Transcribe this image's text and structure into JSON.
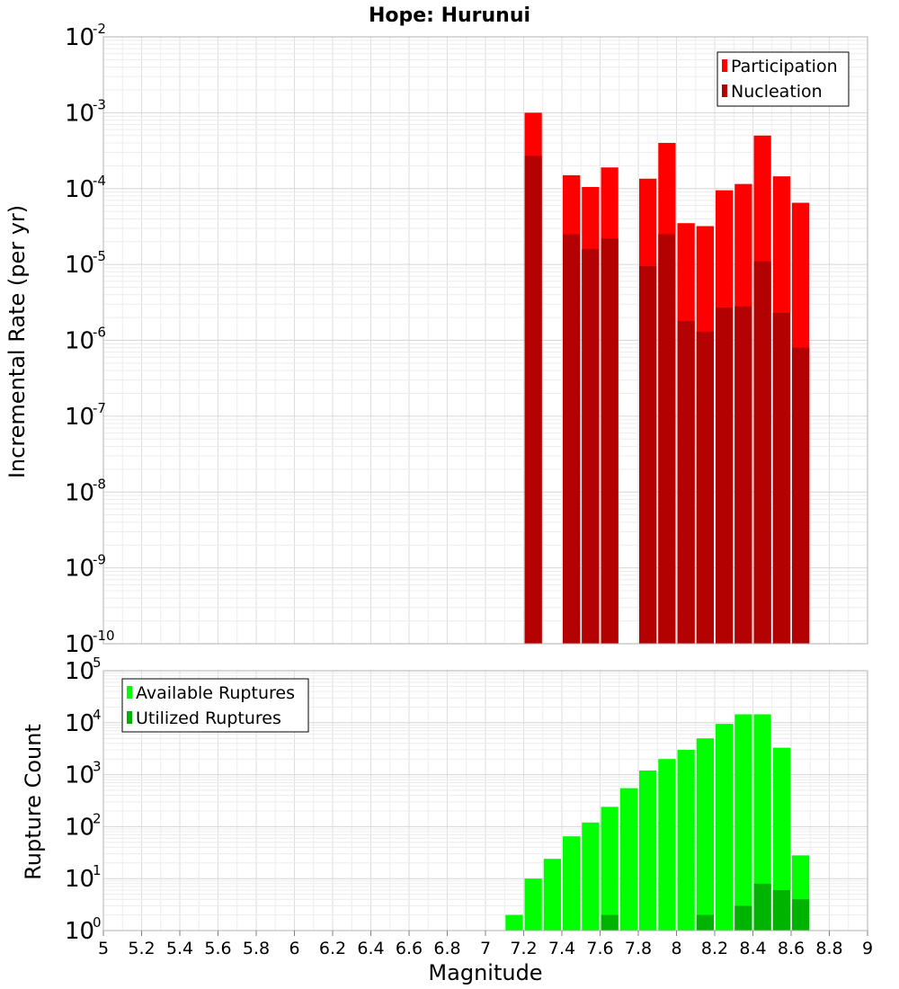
{
  "chart_data": [
    {
      "type": "bar",
      "title": "Hope: Hurunui",
      "xlabel": "Magnitude",
      "ylabel": "Incremental Rate (per yr)",
      "yscale": "log",
      "ylim_exp": [
        -10,
        -2
      ],
      "xlim": [
        5,
        9
      ],
      "legend": "top-right",
      "grid": true,
      "colors": {
        "Participation": "#ff0000",
        "Nucleation": "#b30000"
      },
      "x": [
        7.25,
        7.45,
        7.55,
        7.65,
        7.85,
        7.95,
        8.05,
        8.15,
        8.25,
        8.35,
        8.45,
        8.55,
        8.65
      ],
      "series": [
        {
          "name": "Participation",
          "values": [
            0.001,
            0.00015,
            0.000105,
            0.00019,
            0.000135,
            0.0004,
            3.5e-05,
            3.2e-05,
            9.5e-05,
            0.000115,
            0.0005,
            0.000145,
            6.5e-05
          ]
        },
        {
          "name": "Nucleation",
          "values": [
            0.00027,
            2.5e-05,
            1.6e-05,
            2.2e-05,
            9.5e-06,
            2.5e-05,
            1.8e-06,
            1.3e-06,
            2.7e-06,
            2.8e-06,
            1.1e-05,
            2.3e-06,
            8e-07
          ]
        }
      ]
    },
    {
      "type": "bar",
      "xlabel": "Magnitude",
      "ylabel": "Rupture Count",
      "yscale": "log",
      "ylim_exp": [
        0,
        5
      ],
      "xlim": [
        5,
        9
      ],
      "legend": "top-left",
      "grid": true,
      "colors": {
        "Available Ruptures": "#00ff00",
        "Utilized Ruptures": "#00b300"
      },
      "x": [
        6.75,
        7.15,
        7.25,
        7.35,
        7.45,
        7.55,
        7.65,
        7.75,
        7.85,
        7.95,
        8.05,
        8.15,
        8.25,
        8.35,
        8.45,
        8.55,
        8.65
      ],
      "series": [
        {
          "name": "Available Ruptures",
          "values": [
            1,
            2,
            10,
            24,
            65,
            120,
            240,
            550,
            1200,
            2000,
            3000,
            5000,
            9500,
            14500,
            14500,
            3300,
            28
          ]
        },
        {
          "name": "Utilized Ruptures",
          "values": [
            0,
            0,
            1,
            0,
            1,
            1,
            2,
            0,
            1,
            1,
            1,
            2,
            1,
            3,
            8,
            6,
            4
          ]
        }
      ]
    }
  ],
  "x_ticks": [
    "5",
    "5.2",
    "5.4",
    "5.6",
    "5.8",
    "6",
    "6.2",
    "6.4",
    "6.6",
    "6.8",
    "7",
    "7.2",
    "7.4",
    "7.6",
    "7.8",
    "8",
    "8.2",
    "8.4",
    "8.6",
    "8.8",
    "9"
  ],
  "tick_base": "10"
}
